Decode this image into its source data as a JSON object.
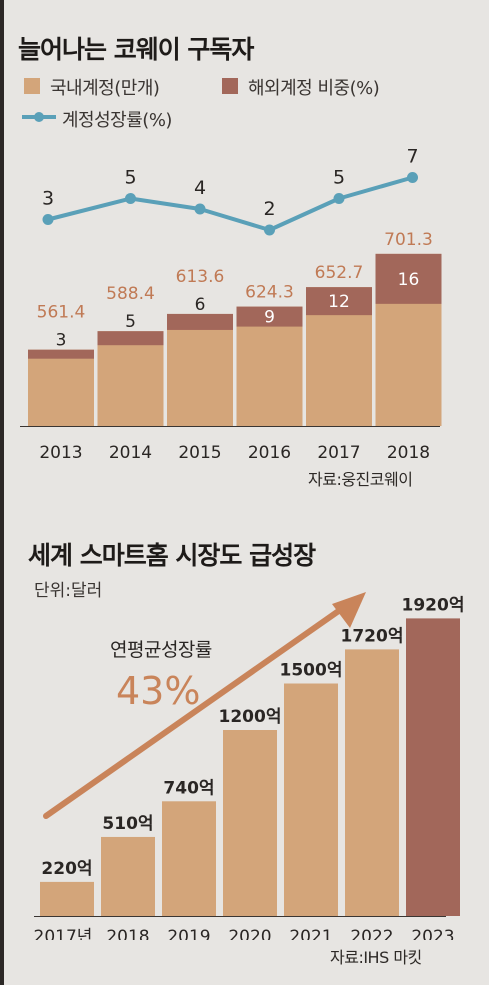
{
  "chart1": {
    "title": "늘어나는 코웨이 구독자",
    "legend": {
      "domestic": "국내계정(만개)",
      "overseas": "해외계정 비중(%)",
      "growth": "계정성장률(%)"
    },
    "source": "자료:웅진코웨이",
    "colors": {
      "domestic": "#d3a57a",
      "overseas": "#a2675a",
      "growth": "#5aa0b8",
      "total_label": "#c07a55"
    }
  },
  "chart2": {
    "title": "세계 스마트홈 시장도 급성장",
    "unit": "단위:달러",
    "annotation_label": "연평균성장률",
    "annotation_value": "43%",
    "source": "자료:IHS 마킷",
    "colors": {
      "bar": "#d3a57a",
      "bar_last": "#a2675a",
      "arrow": "#c9845a"
    }
  },
  "chart_data": [
    {
      "type": "bar",
      "title": "늘어나는 코웨이 구독자",
      "categories": [
        "2013",
        "2014",
        "2015",
        "2016",
        "2017",
        "2018"
      ],
      "series": [
        {
          "name": "국내계정(만개)",
          "values": [
            561.4,
            588.4,
            613.6,
            624.3,
            652.7,
            701.3
          ]
        },
        {
          "name": "해외계정 비중(%)",
          "values": [
            3,
            5,
            6,
            9,
            12,
            16
          ]
        },
        {
          "name": "계정성장률(%)",
          "type": "line",
          "values": [
            3,
            5,
            4,
            2,
            5,
            7
          ]
        }
      ],
      "total_labels": [
        "561.4",
        "588.4",
        "613.6",
        "624.3",
        "652.7",
        "701.3"
      ],
      "overseas_labels": [
        "3",
        "5",
        "6",
        "9",
        "12",
        "16"
      ],
      "growth_labels": [
        "3",
        "5",
        "4",
        "2",
        "5",
        "7"
      ],
      "legend_position": "top",
      "grid": false
    },
    {
      "type": "bar",
      "title": "세계 스마트홈 시장도 급성장",
      "categories": [
        "2017년",
        "2018",
        "2019",
        "2020",
        "2021",
        "2022",
        "2023"
      ],
      "values": [
        220,
        510,
        740,
        1200,
        1500,
        1720,
        1920
      ],
      "value_labels": [
        "220억",
        "510억",
        "740억",
        "1200억",
        "1500억",
        "1720억",
        "1920억"
      ],
      "grid": false
    }
  ]
}
